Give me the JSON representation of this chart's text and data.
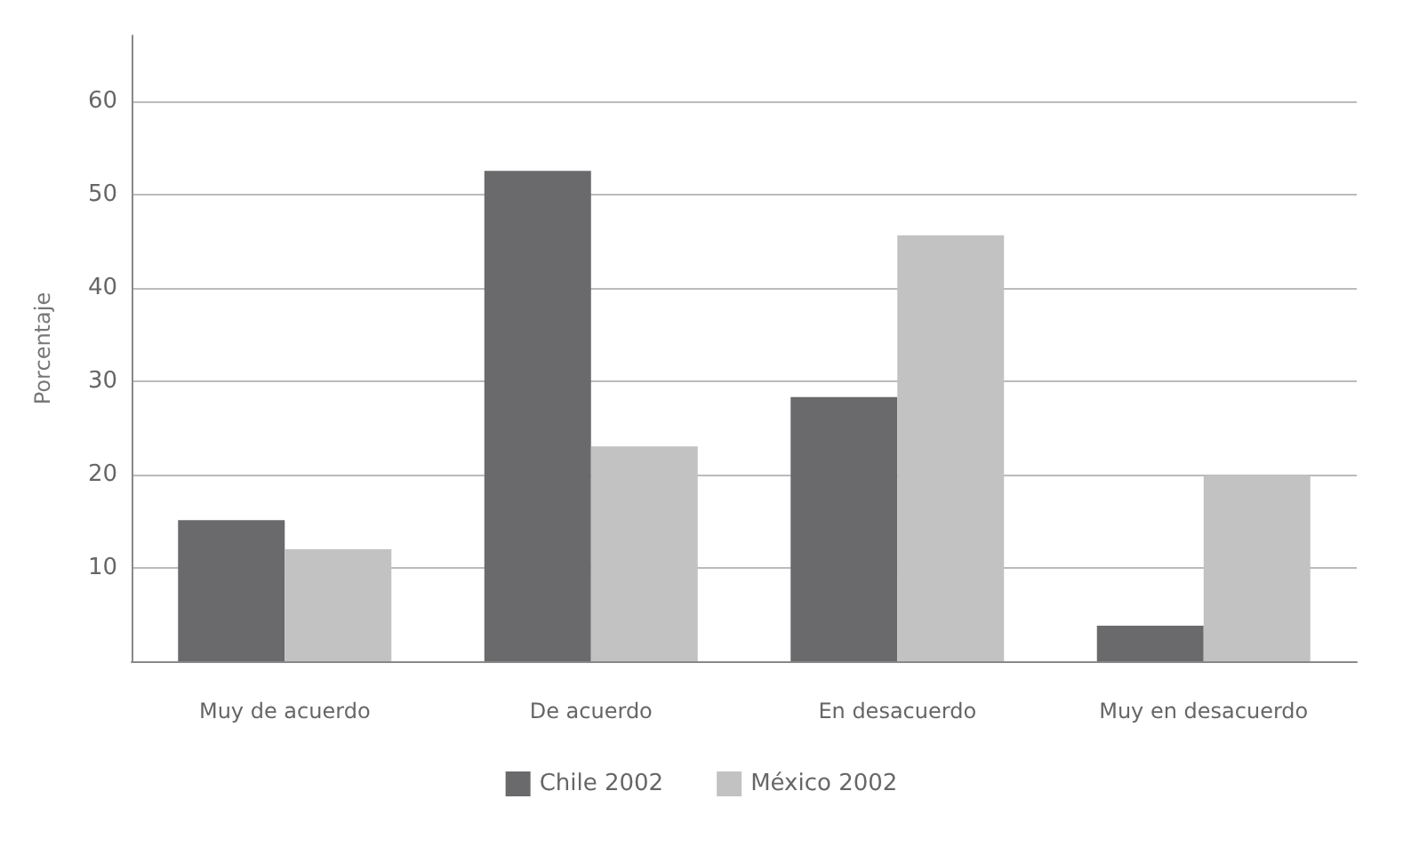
{
  "chart_data": {
    "type": "bar",
    "ylabel": "Porcentaje",
    "categories": [
      "Muy de acuerdo",
      "De acuerdo",
      "En desacuerdo",
      "Muy en desacuerdo"
    ],
    "series": [
      {
        "name": "Chile 2002",
        "color": "#6a6a6c",
        "values": [
          15.1,
          52.5,
          28.3,
          3.8
        ]
      },
      {
        "name": "México 2002",
        "color": "#c2c2c2",
        "values": [
          12,
          23,
          45.6,
          19.9
        ]
      }
    ],
    "ylim": [
      0,
      67
    ],
    "yticks": [
      10,
      20,
      30,
      40,
      50,
      60
    ],
    "grid": "y",
    "legend": "bottom"
  }
}
